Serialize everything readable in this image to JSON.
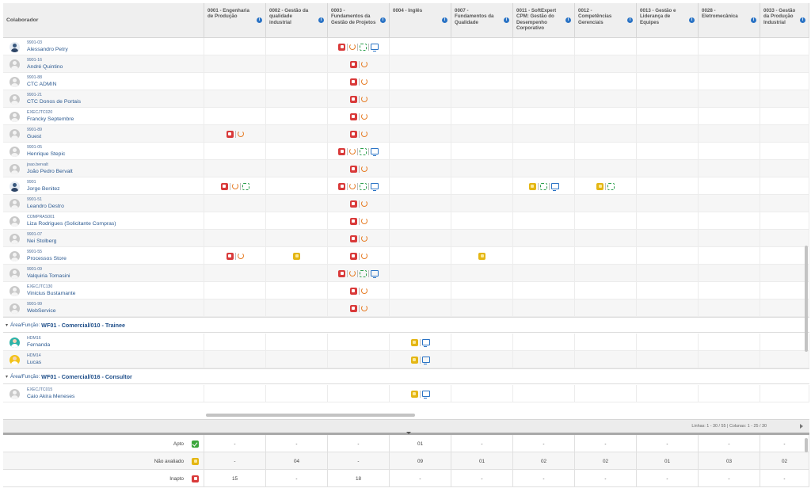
{
  "header": {
    "first_label": "Colaborador",
    "columns": [
      {
        "label": "0001 - Engenharia de Produção"
      },
      {
        "label": "0002 - Gestão da qualidade industrial"
      },
      {
        "label": "0003 - Fundamentos da Gestão de Projetos"
      },
      {
        "label": "0004 - Inglês"
      },
      {
        "label": "0007 - Fundamentos da Qualidade"
      },
      {
        "label": "0011 - SoftExpert CPM: Gestão do Desempenho Corporativo"
      },
      {
        "label": "0012 - Competências Gerenciais"
      },
      {
        "label": "0013 - Gestão e Liderança de Equipes"
      },
      {
        "label": "0028 - Eletromecânica"
      },
      {
        "label": "0033 - Gestão da Produção Industrial"
      }
    ]
  },
  "rows": [
    {
      "code": "9901-03",
      "name": "Alessandro Petry",
      "avatar": "photo",
      "cells": {
        "2": [
          "red",
          "sep",
          "redo",
          "sep",
          "sync",
          "sep",
          "mon"
        ]
      }
    },
    {
      "code": "9901-16",
      "name": "André Quintino",
      "avatar": "default",
      "cells": {
        "2": [
          "red",
          "sep",
          "redo"
        ]
      }
    },
    {
      "code": "9901-88",
      "name": "CTC ADMIN",
      "avatar": "default",
      "cells": {
        "2": [
          "red",
          "sep",
          "redo"
        ]
      }
    },
    {
      "code": "9901-21",
      "name": "CTC Donos de Portais",
      "avatar": "default",
      "cells": {
        "2": [
          "red",
          "sep",
          "redo"
        ]
      }
    },
    {
      "code": "EXECJTC020",
      "name": "Francky Septembre",
      "avatar": "default",
      "cells": {
        "2": [
          "red",
          "sep",
          "redo"
        ]
      }
    },
    {
      "code": "9901-89",
      "name": "Guest",
      "avatar": "default",
      "cells": {
        "0": [
          "red",
          "sep",
          "redo"
        ],
        "2": [
          "red",
          "sep",
          "redo"
        ]
      }
    },
    {
      "code": "9901-05",
      "name": "Henrique Stepic",
      "avatar": "default",
      "cells": {
        "2": [
          "red",
          "sep",
          "redo",
          "sep",
          "sync",
          "sep",
          "mon"
        ]
      }
    },
    {
      "code": "joao.bervalt",
      "name": "João Pedro Bervalt",
      "avatar": "default",
      "cells": {
        "2": [
          "red",
          "sep",
          "redo"
        ]
      }
    },
    {
      "code": "9901",
      "name": "Jorge Benitez",
      "avatar": "photo",
      "cells": {
        "0": [
          "red",
          "sep",
          "redo",
          "sep",
          "sync"
        ],
        "2": [
          "red",
          "sep",
          "redo",
          "sep",
          "sync",
          "sep",
          "mon"
        ],
        "5": [
          "yel",
          "sep",
          "sync",
          "sep",
          "mon"
        ],
        "6": [
          "yel",
          "sep",
          "sync"
        ]
      }
    },
    {
      "code": "9901-51",
      "name": "Leandro Destro",
      "avatar": "default",
      "cells": {
        "2": [
          "red",
          "sep",
          "redo"
        ]
      }
    },
    {
      "code": "COMPRAS001",
      "name": "Liza Rodrigues (Solicitante Compras)",
      "avatar": "default",
      "cells": {
        "2": [
          "red",
          "sep",
          "redo"
        ]
      }
    },
    {
      "code": "9901-07",
      "name": "Nei Stolberg",
      "avatar": "default",
      "cells": {
        "2": [
          "red",
          "sep",
          "redo"
        ]
      }
    },
    {
      "code": "9901-55",
      "name": "Processos Store",
      "avatar": "default",
      "cells": {
        "0": [
          "red",
          "sep",
          "redo"
        ],
        "1": [
          "yel"
        ],
        "2": [
          "red",
          "sep",
          "redo"
        ],
        "4": [
          "yel"
        ]
      }
    },
    {
      "code": "9901-09",
      "name": "Valquiria Tomasini",
      "avatar": "default",
      "cells": {
        "2": [
          "red",
          "sep",
          "redo",
          "sep",
          "sync",
          "sep",
          "mon"
        ]
      }
    },
    {
      "code": "EXECJTC130",
      "name": "Vinicius Bustamante",
      "avatar": "default",
      "cells": {
        "2": [
          "red",
          "sep",
          "redo"
        ]
      }
    },
    {
      "code": "9901-99",
      "name": "WebService",
      "avatar": "default",
      "cells": {
        "2": [
          "red",
          "sep",
          "redo"
        ]
      }
    }
  ],
  "groups": [
    {
      "label": "Área/Função:",
      "value": "WF01 - Comercial/010 - Trainee",
      "rows": [
        {
          "code": "HDM16",
          "name": "Fernanda",
          "avatar": "teal",
          "cells": {
            "3": [
              "yel",
              "sep",
              "mon"
            ]
          }
        },
        {
          "code": "HDM14",
          "name": "Lucas",
          "avatar": "yellow",
          "cells": {
            "3": [
              "yel",
              "sep",
              "mon"
            ]
          }
        }
      ]
    },
    {
      "label": "Área/Função:",
      "value": "WF01 - Comercial/016 - Consultor",
      "rows": [
        {
          "code": "EXECJTC015",
          "name": "Caio Akira Meneses",
          "avatar": "default",
          "cells": {
            "3": [
              "yel",
              "sep",
              "mon"
            ]
          }
        }
      ]
    }
  ],
  "pager": {
    "text": "Linhas: 1 - 30 / 55 | Colunas: 1 - 25 / 30"
  },
  "summary": [
    {
      "label": "Apto",
      "icon": "grn",
      "values": [
        "-",
        "-",
        "-",
        "01",
        "-",
        "-",
        "-",
        "-",
        "-",
        "-"
      ]
    },
    {
      "label": "Não avaliado",
      "icon": "yel",
      "values": [
        "-",
        "04",
        "-",
        "09",
        "01",
        "02",
        "02",
        "01",
        "03",
        "02"
      ]
    },
    {
      "label": "Inapto",
      "icon": "red",
      "values": [
        "15",
        "-",
        "18",
        "-",
        "-",
        "-",
        "-",
        "-",
        "-",
        "-"
      ]
    }
  ],
  "colors": {
    "link": "#2c5a91",
    "inapto": "#d93a3a",
    "nao_avaliado": "#e4b614",
    "apto": "#3aa63a",
    "refresh": "#e67c25"
  }
}
